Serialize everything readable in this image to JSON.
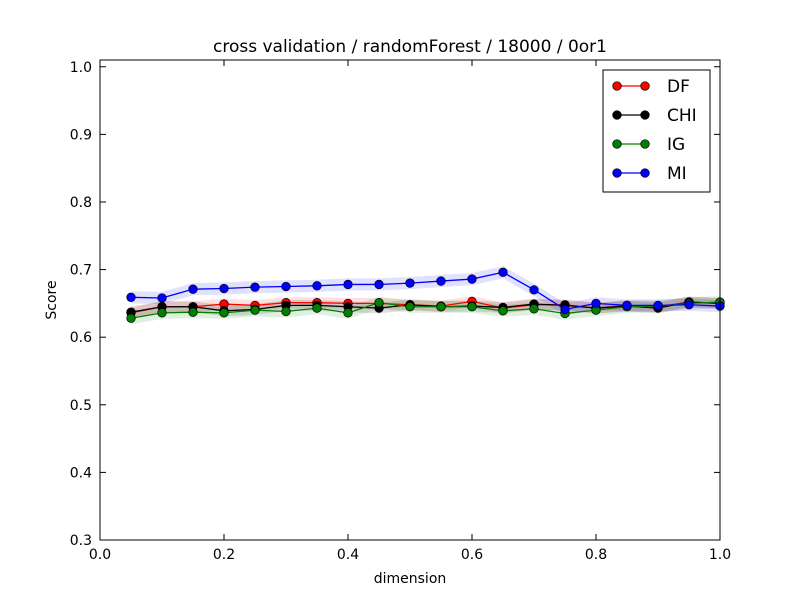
{
  "chart_data": {
    "type": "line",
    "title": "cross validation / randomForest / 18000 / 0or1",
    "xlabel": "dimension",
    "ylabel": "Score",
    "xlim": [
      0.0,
      1.0
    ],
    "ylim": [
      0.3,
      1.01
    ],
    "xticks": [
      0.0,
      0.2,
      0.4,
      0.6,
      0.8,
      1.0
    ],
    "xtick_labels": [
      "0.0",
      "0.2",
      "0.4",
      "0.6",
      "0.8",
      "1.0"
    ],
    "yticks": [
      0.3,
      0.4,
      0.5,
      0.6,
      0.7,
      0.8,
      0.9,
      1.0
    ],
    "ytick_labels": [
      "0.3",
      "0.4",
      "0.5",
      "0.6",
      "0.7",
      "0.8",
      "0.9",
      "1.0"
    ],
    "grid": false,
    "legend_position": "top-right",
    "x": [
      0.05,
      0.1,
      0.15,
      0.2,
      0.25,
      0.3,
      0.35,
      0.4,
      0.45,
      0.5,
      0.55,
      0.6,
      0.65,
      0.7,
      0.75,
      0.8,
      0.85,
      0.9,
      0.95,
      1.0
    ],
    "series": [
      {
        "name": "DF",
        "color": "#ff0000",
        "values": [
          0.636,
          0.645,
          0.645,
          0.649,
          0.647,
          0.651,
          0.651,
          0.65,
          0.65,
          0.648,
          0.646,
          0.653,
          0.643,
          0.648,
          0.648,
          0.643,
          0.647,
          0.645,
          0.652,
          0.65
        ],
        "band": 0.008
      },
      {
        "name": "CHI",
        "color": "#000000",
        "values": [
          0.637,
          0.645,
          0.645,
          0.639,
          0.641,
          0.647,
          0.647,
          0.645,
          0.643,
          0.648,
          0.645,
          0.646,
          0.644,
          0.649,
          0.647,
          0.643,
          0.646,
          0.643,
          0.652,
          0.65
        ],
        "band": 0.008
      },
      {
        "name": "IG",
        "color": "#008000",
        "values": [
          0.628,
          0.636,
          0.637,
          0.636,
          0.64,
          0.638,
          0.643,
          0.636,
          0.651,
          0.645,
          0.645,
          0.645,
          0.639,
          0.642,
          0.635,
          0.64,
          0.645,
          0.646,
          0.65,
          0.652
        ],
        "band": 0.009
      },
      {
        "name": "MI",
        "color": "#0000ff",
        "values": [
          0.659,
          0.658,
          0.671,
          0.672,
          0.674,
          0.675,
          0.676,
          0.678,
          0.678,
          0.68,
          0.683,
          0.686,
          0.696,
          0.67,
          0.641,
          0.65,
          0.647,
          0.647,
          0.648,
          0.646
        ],
        "band": 0.009
      }
    ]
  }
}
